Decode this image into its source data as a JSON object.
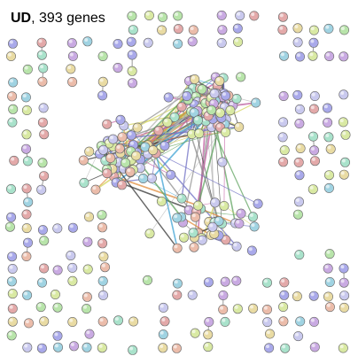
{
  "header": {
    "label": "UD",
    "count_text": ", 393 genes"
  }
}
